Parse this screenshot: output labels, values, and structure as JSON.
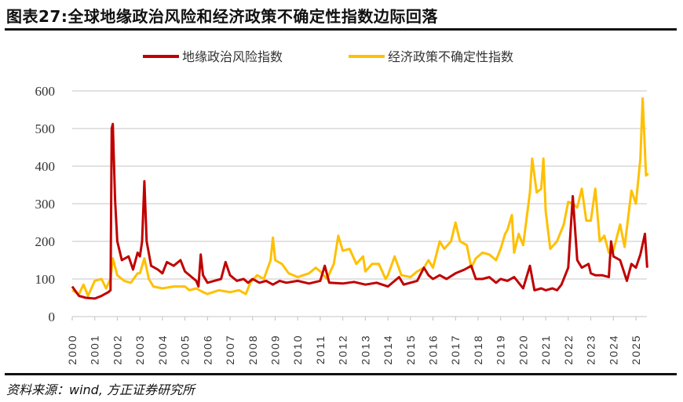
{
  "title": "图表27:全球地缘政治风险和经济政策不确定性指数边际回落",
  "source": "资料来源：wind, 方正证券研究所",
  "chart_data": {
    "type": "line",
    "title": "图表27:全球地缘政治风险和经济政策不确定性指数边际回落",
    "xlabel": "",
    "ylabel": "",
    "ylim": [
      0,
      600
    ],
    "yticks": [
      0,
      100,
      200,
      300,
      400,
      500,
      600
    ],
    "xlim": [
      2000,
      2025.55
    ],
    "xticks": [
      "2000",
      "2001",
      "2002",
      "2003",
      "2004",
      "2005",
      "2006",
      "2007",
      "2008",
      "2009",
      "2010",
      "2011",
      "2012",
      "2013",
      "2014",
      "2015",
      "2016",
      "2017",
      "2018",
      "2019",
      "2020",
      "2021",
      "2022",
      "2023",
      "2024",
      "2025"
    ],
    "grid": "horizontal",
    "legend": "top-center",
    "series": [
      {
        "name": "地缘政治风险指数",
        "color": "#C00000",
        "points": [
          [
            2000.0,
            80
          ],
          [
            2000.3,
            55
          ],
          [
            2000.6,
            50
          ],
          [
            2001.0,
            48
          ],
          [
            2001.3,
            55
          ],
          [
            2001.6,
            65
          ],
          [
            2001.7,
            70
          ],
          [
            2001.75,
            500
          ],
          [
            2001.8,
            512
          ],
          [
            2001.9,
            310
          ],
          [
            2002.0,
            200
          ],
          [
            2002.2,
            150
          ],
          [
            2002.5,
            160
          ],
          [
            2002.7,
            125
          ],
          [
            2002.9,
            170
          ],
          [
            2003.0,
            160
          ],
          [
            2003.1,
            200
          ],
          [
            2003.2,
            360
          ],
          [
            2003.3,
            200
          ],
          [
            2003.5,
            135
          ],
          [
            2003.8,
            125
          ],
          [
            2004.0,
            115
          ],
          [
            2004.2,
            145
          ],
          [
            2004.5,
            135
          ],
          [
            2004.8,
            150
          ],
          [
            2005.0,
            120
          ],
          [
            2005.3,
            105
          ],
          [
            2005.5,
            95
          ],
          [
            2005.6,
            80
          ],
          [
            2005.7,
            165
          ],
          [
            2005.8,
            110
          ],
          [
            2006.0,
            90
          ],
          [
            2006.3,
            95
          ],
          [
            2006.6,
            100
          ],
          [
            2006.8,
            145
          ],
          [
            2007.0,
            110
          ],
          [
            2007.3,
            95
          ],
          [
            2007.6,
            100
          ],
          [
            2007.8,
            90
          ],
          [
            2008.0,
            100
          ],
          [
            2008.3,
            90
          ],
          [
            2008.6,
            95
          ],
          [
            2008.9,
            85
          ],
          [
            2009.2,
            95
          ],
          [
            2009.5,
            90
          ],
          [
            2010.0,
            95
          ],
          [
            2010.5,
            88
          ],
          [
            2011.0,
            95
          ],
          [
            2011.2,
            135
          ],
          [
            2011.4,
            90
          ],
          [
            2012.0,
            88
          ],
          [
            2012.5,
            92
          ],
          [
            2013.0,
            85
          ],
          [
            2013.5,
            90
          ],
          [
            2014.0,
            80
          ],
          [
            2014.5,
            105
          ],
          [
            2014.7,
            85
          ],
          [
            2015.0,
            90
          ],
          [
            2015.3,
            95
          ],
          [
            2015.6,
            130
          ],
          [
            2015.8,
            110
          ],
          [
            2016.0,
            100
          ],
          [
            2016.3,
            110
          ],
          [
            2016.6,
            100
          ],
          [
            2017.0,
            115
          ],
          [
            2017.4,
            125
          ],
          [
            2017.7,
            135
          ],
          [
            2017.9,
            100
          ],
          [
            2018.2,
            100
          ],
          [
            2018.5,
            105
          ],
          [
            2018.8,
            90
          ],
          [
            2019.0,
            100
          ],
          [
            2019.3,
            95
          ],
          [
            2019.6,
            105
          ],
          [
            2020.0,
            75
          ],
          [
            2020.3,
            135
          ],
          [
            2020.5,
            70
          ],
          [
            2020.8,
            75
          ],
          [
            2021.0,
            70
          ],
          [
            2021.3,
            75
          ],
          [
            2021.5,
            70
          ],
          [
            2021.7,
            85
          ],
          [
            2022.0,
            130
          ],
          [
            2022.2,
            320
          ],
          [
            2022.4,
            150
          ],
          [
            2022.6,
            130
          ],
          [
            2022.9,
            140
          ],
          [
            2023.0,
            115
          ],
          [
            2023.2,
            110
          ],
          [
            2023.5,
            110
          ],
          [
            2023.8,
            105
          ],
          [
            2023.9,
            200
          ],
          [
            2024.0,
            160
          ],
          [
            2024.3,
            150
          ],
          [
            2024.6,
            95
          ],
          [
            2024.8,
            140
          ],
          [
            2025.0,
            130
          ],
          [
            2025.2,
            165
          ],
          [
            2025.4,
            220
          ],
          [
            2025.5,
            130
          ]
        ]
      },
      {
        "name": "经济政策不确定性指数",
        "color": "#FFC000",
        "points": [
          [
            2000.0,
            70
          ],
          [
            2000.3,
            60
          ],
          [
            2000.5,
            85
          ],
          [
            2000.7,
            55
          ],
          [
            2001.0,
            95
          ],
          [
            2001.3,
            100
          ],
          [
            2001.5,
            75
          ],
          [
            2001.7,
            100
          ],
          [
            2001.8,
            155
          ],
          [
            2002.0,
            110
          ],
          [
            2002.3,
            95
          ],
          [
            2002.6,
            90
          ],
          [
            2002.9,
            115
          ],
          [
            2003.0,
            115
          ],
          [
            2003.2,
            155
          ],
          [
            2003.4,
            100
          ],
          [
            2003.6,
            80
          ],
          [
            2004.0,
            75
          ],
          [
            2004.5,
            80
          ],
          [
            2005.0,
            80
          ],
          [
            2005.2,
            70
          ],
          [
            2005.5,
            75
          ],
          [
            2005.8,
            65
          ],
          [
            2006.0,
            60
          ],
          [
            2006.5,
            70
          ],
          [
            2007.0,
            65
          ],
          [
            2007.4,
            70
          ],
          [
            2007.7,
            60
          ],
          [
            2007.9,
            90
          ],
          [
            2008.2,
            110
          ],
          [
            2008.5,
            100
          ],
          [
            2008.8,
            150
          ],
          [
            2008.9,
            210
          ],
          [
            2009.0,
            150
          ],
          [
            2009.3,
            140
          ],
          [
            2009.6,
            115
          ],
          [
            2010.0,
            105
          ],
          [
            2010.5,
            115
          ],
          [
            2010.8,
            130
          ],
          [
            2011.0,
            120
          ],
          [
            2011.3,
            100
          ],
          [
            2011.6,
            140
          ],
          [
            2011.8,
            215
          ],
          [
            2012.0,
            175
          ],
          [
            2012.3,
            180
          ],
          [
            2012.6,
            140
          ],
          [
            2012.9,
            160
          ],
          [
            2013.0,
            120
          ],
          [
            2013.3,
            140
          ],
          [
            2013.6,
            140
          ],
          [
            2013.9,
            100
          ],
          [
            2014.0,
            110
          ],
          [
            2014.3,
            160
          ],
          [
            2014.6,
            110
          ],
          [
            2015.0,
            105
          ],
          [
            2015.3,
            120
          ],
          [
            2015.6,
            130
          ],
          [
            2015.8,
            150
          ],
          [
            2016.0,
            130
          ],
          [
            2016.3,
            200
          ],
          [
            2016.5,
            180
          ],
          [
            2016.8,
            200
          ],
          [
            2017.0,
            250
          ],
          [
            2017.2,
            200
          ],
          [
            2017.5,
            190
          ],
          [
            2017.7,
            130
          ],
          [
            2017.9,
            155
          ],
          [
            2018.2,
            170
          ],
          [
            2018.5,
            165
          ],
          [
            2018.8,
            150
          ],
          [
            2019.0,
            180
          ],
          [
            2019.2,
            220
          ],
          [
            2019.3,
            230
          ],
          [
            2019.5,
            270
          ],
          [
            2019.6,
            170
          ],
          [
            2019.8,
            220
          ],
          [
            2020.0,
            190
          ],
          [
            2020.3,
            330
          ],
          [
            2020.4,
            420
          ],
          [
            2020.6,
            330
          ],
          [
            2020.8,
            340
          ],
          [
            2020.9,
            420
          ],
          [
            2021.0,
            280
          ],
          [
            2021.2,
            180
          ],
          [
            2021.5,
            200
          ],
          [
            2021.8,
            245
          ],
          [
            2022.0,
            305
          ],
          [
            2022.2,
            300
          ],
          [
            2022.4,
            290
          ],
          [
            2022.6,
            340
          ],
          [
            2022.8,
            255
          ],
          [
            2023.0,
            255
          ],
          [
            2023.2,
            340
          ],
          [
            2023.4,
            200
          ],
          [
            2023.6,
            215
          ],
          [
            2023.8,
            170
          ],
          [
            2024.0,
            175
          ],
          [
            2024.3,
            245
          ],
          [
            2024.5,
            185
          ],
          [
            2024.8,
            335
          ],
          [
            2025.0,
            300
          ],
          [
            2025.2,
            420
          ],
          [
            2025.3,
            580
          ],
          [
            2025.45,
            375
          ],
          [
            2025.55,
            380
          ]
        ]
      }
    ]
  }
}
